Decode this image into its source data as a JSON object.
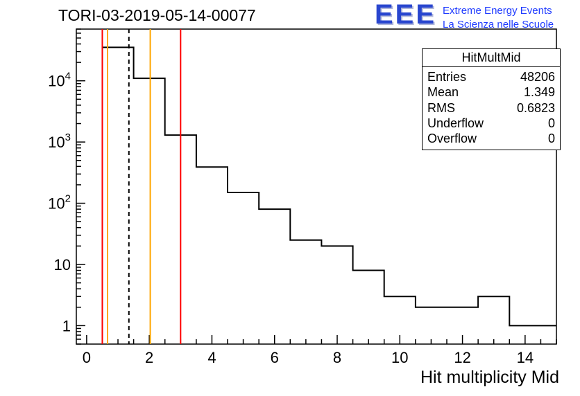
{
  "header": {
    "title": "TORI-03-2019-05-14-00077",
    "logo": {
      "text": "EEE",
      "line1": "Extreme Energy Events",
      "line2": "La Scienza nelle Scuole"
    }
  },
  "stats": {
    "title": "HitMultMid",
    "rows": [
      {
        "label": "Entries",
        "value": "48206"
      },
      {
        "label": "Mean",
        "value": "1.349"
      },
      {
        "label": "RMS",
        "value": "0.6823"
      },
      {
        "label": "Underflow",
        "value": "0"
      },
      {
        "label": "Overflow",
        "value": "0"
      }
    ]
  },
  "colors": {
    "logo_blue": "#2946cf",
    "logo_caption_blue": "#1f3bff",
    "marker_red": "#ff0000",
    "marker_orange": "#ffa500",
    "histogram_line": "#000000",
    "axis": "#000000"
  },
  "chart_data": {
    "type": "bar",
    "title": "TORI-03-2019-05-14-00077",
    "xlabel": "Hit multiplicity Mid",
    "ylabel": "",
    "y_scale": "log",
    "grid": false,
    "legend": "none",
    "xlim": [
      -0.33,
      15.0
    ],
    "ylim": [
      0.5,
      70000
    ],
    "x_ticks": [
      0,
      2,
      4,
      6,
      8,
      10,
      12,
      14
    ],
    "y_ticks": [
      {
        "v": 1,
        "base": "1",
        "sup": ""
      },
      {
        "v": 10,
        "base": "10",
        "sup": ""
      },
      {
        "v": 100,
        "base": "10",
        "sup": "2"
      },
      {
        "v": 1000,
        "base": "10",
        "sup": "3"
      },
      {
        "v": 10000,
        "base": "10",
        "sup": "4"
      }
    ],
    "histogram": {
      "name": "HitMultMid",
      "bin_start": 0.5,
      "bin_width": 1.0,
      "bin_centers": [
        1,
        2,
        3,
        4,
        5,
        6,
        7,
        8,
        9,
        10,
        11,
        12,
        13,
        14,
        15
      ],
      "values": [
        35221,
        11000,
        1300,
        390,
        150,
        80,
        25,
        20,
        8,
        3,
        2,
        2,
        3,
        1,
        1
      ]
    },
    "marker_lines": [
      {
        "x": 0.5,
        "color": "#ff0000",
        "style": "solid"
      },
      {
        "x": 0.667,
        "color": "#ffa500",
        "style": "solid"
      },
      {
        "x": 1.349,
        "color": "#000000",
        "style": "dashed"
      },
      {
        "x": 2.031,
        "color": "#ffa500",
        "style": "solid"
      },
      {
        "x": 3.0,
        "color": "#ff0000",
        "style": "solid"
      }
    ]
  }
}
